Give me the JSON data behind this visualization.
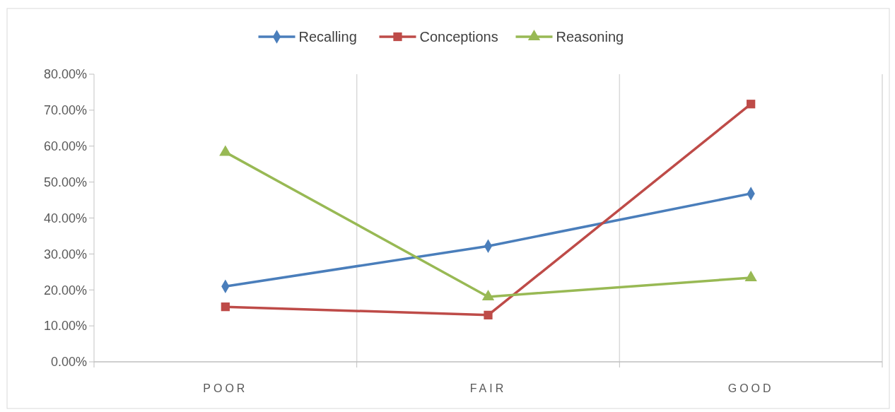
{
  "chart_data": {
    "type": "line",
    "categories": [
      "POOR",
      "FAIR",
      "GOOD"
    ],
    "series": [
      {
        "name": "Recalling",
        "color": "#4a7ebb",
        "marker": "diamond",
        "values": [
          21.0,
          32.2,
          46.8
        ]
      },
      {
        "name": "Conceptions",
        "color": "#be4b48",
        "marker": "square",
        "values": [
          15.3,
          13.0,
          71.7
        ]
      },
      {
        "name": "Reasoning",
        "color": "#98b954",
        "marker": "triangle",
        "values": [
          58.3,
          18.1,
          23.4
        ]
      }
    ],
    "ylim": [
      0,
      80
    ],
    "yticks": [
      {
        "value": 0,
        "label": "0.00%"
      },
      {
        "value": 10,
        "label": "10.00%"
      },
      {
        "value": 20,
        "label": "20.00%"
      },
      {
        "value": 30,
        "label": "30.00%"
      },
      {
        "value": 40,
        "label": "40.00%"
      },
      {
        "value": 50,
        "label": "50.00%"
      },
      {
        "value": 60,
        "label": "60.00%"
      },
      {
        "value": 70,
        "label": "70.00%"
      },
      {
        "value": 80,
        "label": "80.00%"
      }
    ],
    "grid": "x",
    "legend": "top",
    "line_style": "solid"
  }
}
